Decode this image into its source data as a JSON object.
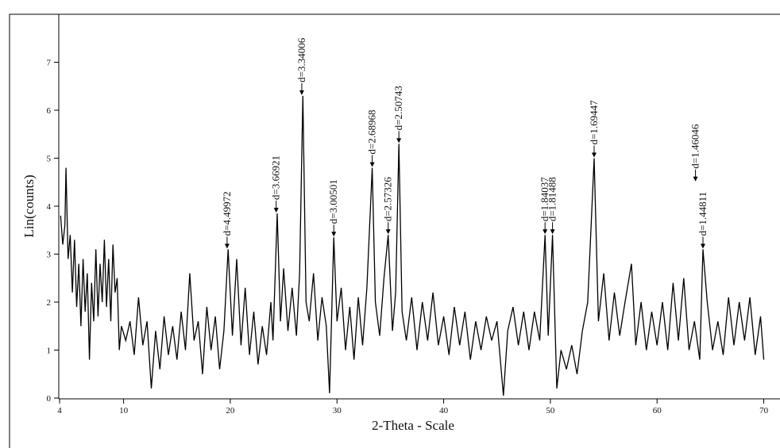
{
  "chart_data": {
    "type": "line",
    "x_label": "2-Theta - Scale",
    "y_label": "Lin(counts)",
    "xlim": [
      4,
      71
    ],
    "ylim": [
      0,
      8
    ],
    "xticks": [
      4,
      10,
      20,
      30,
      40,
      50,
      60,
      70
    ],
    "yticks": [
      0,
      1,
      2,
      3,
      4,
      5,
      6,
      7
    ],
    "series": [
      {
        "color": "#000000",
        "x": [
          4.1,
          4.3,
          4.5,
          4.6,
          4.8,
          5.0,
          5.2,
          5.4,
          5.6,
          5.8,
          6.0,
          6.2,
          6.4,
          6.6,
          6.8,
          7.0,
          7.2,
          7.4,
          7.6,
          7.8,
          8.0,
          8.2,
          8.4,
          8.6,
          8.8,
          9.0,
          9.2,
          9.4,
          9.6,
          9.8,
          10.2,
          10.6,
          11.0,
          11.4,
          11.8,
          12.2,
          12.6,
          13.0,
          13.4,
          13.8,
          14.2,
          14.6,
          15.0,
          15.4,
          15.8,
          16.2,
          16.6,
          17.0,
          17.4,
          17.8,
          18.2,
          18.6,
          19.0,
          19.4,
          19.8,
          20.2,
          20.6,
          21.0,
          21.4,
          21.8,
          22.2,
          22.6,
          23.0,
          23.4,
          23.8,
          24.0,
          24.4,
          24.7,
          25.0,
          25.4,
          25.8,
          26.2,
          26.5,
          26.8,
          27.1,
          27.4,
          27.8,
          28.2,
          28.6,
          29.0,
          29.3,
          29.7,
          30.0,
          30.4,
          30.8,
          31.2,
          31.6,
          32.0,
          32.4,
          32.8,
          33.3,
          33.6,
          34.0,
          34.4,
          34.8,
          35.2,
          35.5,
          35.8,
          36.1,
          36.5,
          37.0,
          37.5,
          38.0,
          38.5,
          39.0,
          39.5,
          40.0,
          40.5,
          41.0,
          41.5,
          42.0,
          42.5,
          43.0,
          43.5,
          44.0,
          44.5,
          45.0,
          45.6,
          46.0,
          46.5,
          47.0,
          47.5,
          48.0,
          48.5,
          49.0,
          49.5,
          49.8,
          50.2,
          50.6,
          51.0,
          51.5,
          52.0,
          52.5,
          53.0,
          53.5,
          54.1,
          54.5,
          55.0,
          55.5,
          56.0,
          56.5,
          57.0,
          57.6,
          58.0,
          58.5,
          59.0,
          59.5,
          60.0,
          60.5,
          61.0,
          61.5,
          62.0,
          62.5,
          63.0,
          63.5,
          64.0,
          64.3,
          64.7,
          65.2,
          65.7,
          66.2,
          66.7,
          67.2,
          67.7,
          68.2,
          68.7,
          69.2,
          69.7,
          70.0
        ],
        "values": [
          3.8,
          3.2,
          3.6,
          4.8,
          2.9,
          3.4,
          2.2,
          3.3,
          1.9,
          2.8,
          1.5,
          2.9,
          1.8,
          2.6,
          0.8,
          2.4,
          1.6,
          3.1,
          1.7,
          2.8,
          2.0,
          3.3,
          1.9,
          2.9,
          1.6,
          3.2,
          2.2,
          2.5,
          1.0,
          1.5,
          1.2,
          1.6,
          0.9,
          2.1,
          1.1,
          1.6,
          0.2,
          1.4,
          0.6,
          1.7,
          0.9,
          1.5,
          0.8,
          1.8,
          1.0,
          2.6,
          1.2,
          1.6,
          0.5,
          1.9,
          1.0,
          1.7,
          0.6,
          1.4,
          3.1,
          1.3,
          2.9,
          1.1,
          2.3,
          0.9,
          1.8,
          0.7,
          1.5,
          0.9,
          2.0,
          1.2,
          3.85,
          1.6,
          2.7,
          1.4,
          2.3,
          1.3,
          2.6,
          6.3,
          2.0,
          1.6,
          2.6,
          1.2,
          2.1,
          1.5,
          0.1,
          3.35,
          1.6,
          2.3,
          1.0,
          1.9,
          0.8,
          2.1,
          1.1,
          2.3,
          4.8,
          2.0,
          1.3,
          2.5,
          3.4,
          1.4,
          2.2,
          5.3,
          1.8,
          1.2,
          2.1,
          1.0,
          2.0,
          1.2,
          2.2,
          1.1,
          1.7,
          0.9,
          1.9,
          1.1,
          1.8,
          0.8,
          1.6,
          1.0,
          1.7,
          1.2,
          1.6,
          0.05,
          1.4,
          1.9,
          1.1,
          1.8,
          1.0,
          1.8,
          1.2,
          3.4,
          1.3,
          3.4,
          0.2,
          1.0,
          0.6,
          1.1,
          0.5,
          1.4,
          2.0,
          5.0,
          1.6,
          2.6,
          1.2,
          2.2,
          1.3,
          2.0,
          2.8,
          1.1,
          2.0,
          1.0,
          1.8,
          1.1,
          2.0,
          1.0,
          2.4,
          1.2,
          2.5,
          1.0,
          1.6,
          0.8,
          3.1,
          2.0,
          1.0,
          1.6,
          0.9,
          2.1,
          1.1,
          2.0,
          1.2,
          2.1,
          0.9,
          1.7,
          0.8
        ]
      }
    ],
    "annotations": [
      {
        "text": "d=4.49972",
        "x": 19.7,
        "y": 3.1
      },
      {
        "text": "d=3.66921",
        "x": 24.3,
        "y": 3.85
      },
      {
        "text": "d=3.34006",
        "x": 26.7,
        "y": 6.3
      },
      {
        "text": "d=3.00501",
        "x": 29.7,
        "y": 3.35
      },
      {
        "text": "d=2.68968",
        "x": 33.3,
        "y": 4.8
      },
      {
        "text": "d=2.57326",
        "x": 34.8,
        "y": 3.4
      },
      {
        "text": "d=2.50743",
        "x": 35.8,
        "y": 5.3
      },
      {
        "text": "d=1.84037",
        "x": 49.5,
        "y": 3.4
      },
      {
        "text": "d=1.81488",
        "x": 50.2,
        "y": 3.4
      },
      {
        "text": "d=1.69447",
        "x": 54.1,
        "y": 5.0
      },
      {
        "text": "d=1.46046",
        "x": 63.6,
        "y": 4.5
      },
      {
        "text": "d=1.44811",
        "x": 64.3,
        "y": 3.1
      }
    ]
  }
}
